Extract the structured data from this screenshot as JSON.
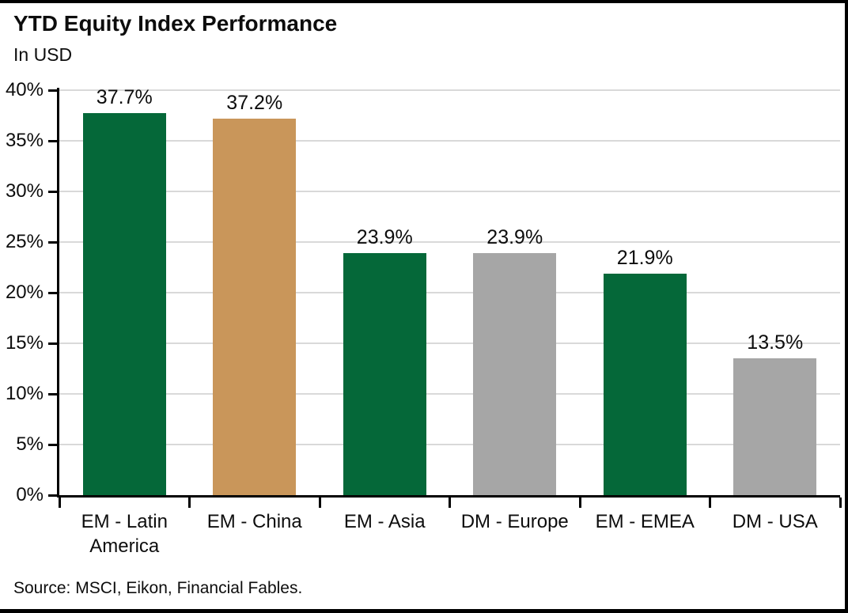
{
  "chart_data": {
    "type": "bar",
    "title": "YTD Equity Index Performance",
    "subtitle": "In USD",
    "categories": [
      "EM - Latin America",
      "EM - China",
      "EM - Asia",
      "DM - Europe",
      "EM - EMEA",
      "DM - USA"
    ],
    "values": [
      37.7,
      37.2,
      23.9,
      23.9,
      21.9,
      13.5
    ],
    "value_labels": [
      "37.7%",
      "37.2%",
      "23.9%",
      "23.9%",
      "21.9%",
      "13.5%"
    ],
    "bar_colors": [
      "#056839",
      "#C9965A",
      "#056839",
      "#A6A6A6",
      "#056839",
      "#A6A6A6"
    ],
    "colors": {
      "em_green": "#056839",
      "china_tan": "#C9965A",
      "dm_gray": "#A6A6A6",
      "gridline": "#D9D9D9",
      "axis": "#000000",
      "background": "#FFFFFF",
      "border": "#000000"
    },
    "y_axis": {
      "min": 0,
      "max": 40,
      "step": 5,
      "tick_labels": [
        "0%",
        "5%",
        "10%",
        "15%",
        "20%",
        "25%",
        "30%",
        "35%",
        "40%"
      ]
    },
    "grid": true,
    "legend": "none",
    "source": "Source: MSCI, Eikon, Financial Fables."
  }
}
